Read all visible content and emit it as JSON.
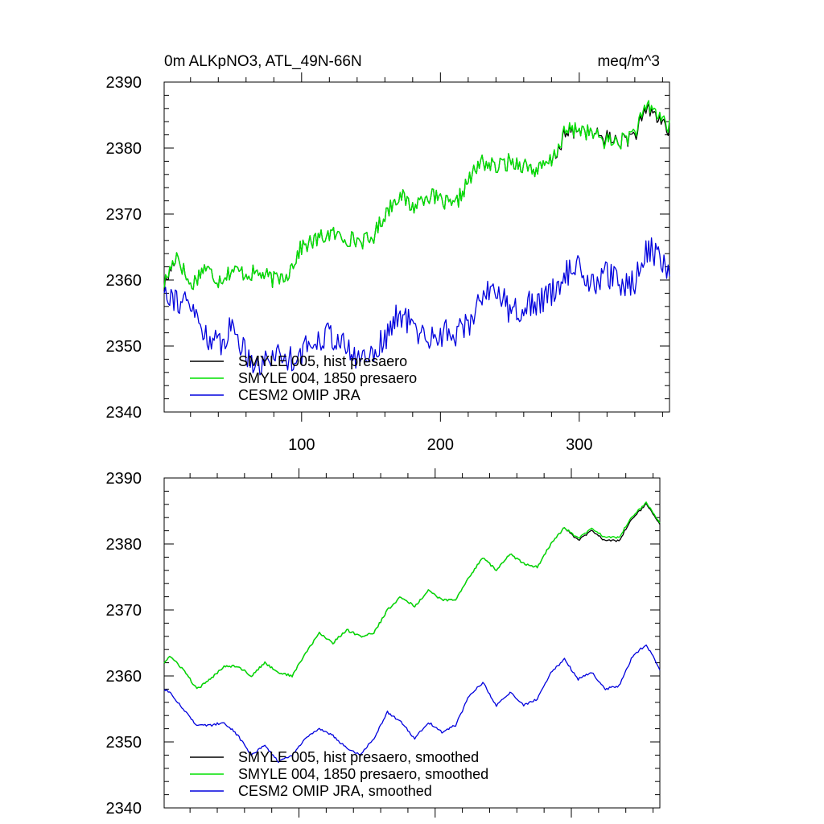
{
  "chart_data": [
    {
      "type": "line",
      "title_left": "0m ALKpNO3, ATL_49N-66N",
      "title_right": "meq/m^3",
      "xlim": [
        1,
        365
      ],
      "ylim": [
        2340,
        2390
      ],
      "yticks": [
        2340,
        2350,
        2360,
        2370,
        2380,
        2390
      ],
      "xticks": [
        100,
        200,
        300
      ],
      "xtick_labels": [
        "100",
        "200",
        "300"
      ],
      "smoothed": false,
      "x": [
        1,
        10,
        20,
        30,
        40,
        50,
        60,
        70,
        80,
        90,
        100,
        110,
        120,
        130,
        140,
        150,
        160,
        170,
        180,
        190,
        200,
        210,
        220,
        230,
        240,
        250,
        260,
        270,
        280,
        290,
        300,
        310,
        320,
        330,
        340,
        350,
        360,
        365
      ],
      "series": [
        {
          "name": "SMYLE 005, hist presaero",
          "color": "#000000",
          "values": [
            2359,
            2364,
            2359,
            2362,
            2360,
            2361.5,
            2361,
            2361,
            2360,
            2361,
            2365,
            2366,
            2367,
            2366.5,
            2366,
            2366,
            2370,
            2373,
            2371,
            2373,
            2372,
            2371,
            2375,
            2378,
            2377,
            2378,
            2377.5,
            2376.5,
            2378,
            2382,
            2383,
            2382,
            2381.5,
            2381,
            2382,
            2386,
            2384,
            2382.5
          ]
        },
        {
          "name": "SMYLE 004, 1850 presaero",
          "color": "#00e000",
          "values": [
            2359.5,
            2364,
            2359,
            2362,
            2360,
            2361.5,
            2361,
            2361,
            2360,
            2361,
            2365,
            2366,
            2367,
            2366.5,
            2366,
            2366,
            2370,
            2373,
            2371,
            2373,
            2372,
            2371,
            2375,
            2378,
            2377,
            2378,
            2377.5,
            2376.5,
            2378,
            2382.5,
            2383,
            2382,
            2381,
            2381,
            2382.5,
            2386.5,
            2384.5,
            2383
          ]
        },
        {
          "name": "CESM2 OMIP JRA",
          "color": "#0000dd",
          "values": [
            2359,
            2357,
            2356,
            2352,
            2350,
            2353,
            2349,
            2347,
            2349,
            2348,
            2349,
            2351,
            2352,
            2350,
            2348,
            2349,
            2351,
            2355,
            2353,
            2351,
            2352,
            2352,
            2353,
            2358,
            2359,
            2355,
            2356,
            2356.5,
            2358,
            2361,
            2362,
            2359,
            2361,
            2359,
            2360,
            2365,
            2363,
            2360
          ]
        }
      ],
      "legend_labels": [
        "SMYLE 005, hist presaero",
        "SMYLE 004, 1850 presaero",
        "CESM2 OMIP JRA"
      ],
      "legend_position": "bottom-left"
    },
    {
      "type": "line",
      "xlim": [
        1,
        365
      ],
      "ylim": [
        2340,
        2390
      ],
      "yticks": [
        2340,
        2350,
        2360,
        2370,
        2380,
        2390
      ],
      "xticks": [
        100,
        200,
        300
      ],
      "smoothed": true,
      "x": [
        1,
        5,
        15,
        25,
        35,
        45,
        55,
        65,
        75,
        85,
        95,
        105,
        115,
        125,
        135,
        145,
        155,
        165,
        175,
        185,
        195,
        205,
        215,
        225,
        235,
        245,
        255,
        265,
        275,
        285,
        295,
        305,
        315,
        325,
        335,
        345,
        355,
        365
      ],
      "series": [
        {
          "name": "SMYLE 005, hist presaero, smoothed",
          "color": "#000000",
          "values": [
            2362,
            2363,
            2361,
            2358,
            2359.5,
            2361.5,
            2361.5,
            2360,
            2362,
            2360.5,
            2360,
            2363.5,
            2366.5,
            2365,
            2367,
            2366,
            2366.5,
            2370,
            2372,
            2370.5,
            2373,
            2371.5,
            2371.5,
            2375,
            2378,
            2376,
            2378.5,
            2377,
            2376.5,
            2380,
            2382.5,
            2380.5,
            2382,
            2380.5,
            2380.5,
            2384,
            2386,
            2383
          ]
        },
        {
          "name": "SMYLE 004, 1850 presaero, smoothed",
          "color": "#00e000",
          "values": [
            2362,
            2363,
            2361,
            2358,
            2359.5,
            2361.5,
            2361.5,
            2360,
            2362,
            2360.5,
            2360,
            2363.5,
            2366.5,
            2365,
            2367,
            2366,
            2366.5,
            2370,
            2372,
            2370.5,
            2373,
            2371.5,
            2371.5,
            2375,
            2378,
            2376,
            2378.5,
            2377,
            2376.5,
            2380,
            2382.5,
            2380.8,
            2382.3,
            2381,
            2381,
            2384.3,
            2386.2,
            2383.2
          ]
        },
        {
          "name": "CESM2 OMIP JRA, smoothed",
          "color": "#0000dd",
          "values": [
            2358,
            2357.5,
            2355,
            2352.5,
            2352.5,
            2353,
            2351,
            2348,
            2349.5,
            2347,
            2348,
            2350.5,
            2352,
            2351,
            2349,
            2348,
            2350.5,
            2354.5,
            2353,
            2350.5,
            2353,
            2351.5,
            2352.5,
            2357,
            2359,
            2355.5,
            2357.5,
            2355.5,
            2356.5,
            2360.5,
            2362.5,
            2359.5,
            2360.5,
            2358,
            2358.5,
            2363,
            2364.8,
            2361
          ]
        }
      ],
      "legend_labels": [
        "SMYLE 005, hist presaero, smoothed",
        "SMYLE 004, 1850 presaero, smoothed",
        "CESM2 OMIP JRA, smoothed"
      ],
      "legend_position": "bottom-left"
    }
  ]
}
